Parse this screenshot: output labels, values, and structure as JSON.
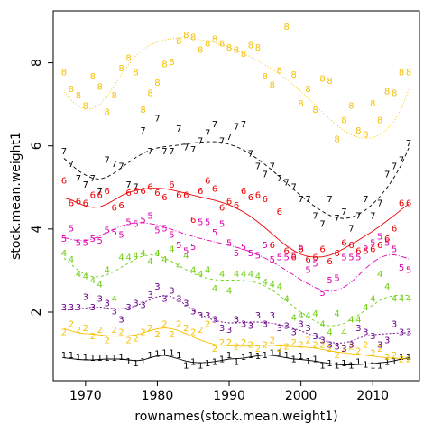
{
  "chart_data": {
    "type": "scatter",
    "xlabel": "rownames(stock.mean.weight1)",
    "ylabel": "stock.mean.weight1",
    "xlim": [
      1965.5,
      2016.5
    ],
    "ylim": [
      0.35,
      9.25
    ],
    "xticks": [
      1970,
      1980,
      1990,
      2000,
      2010
    ],
    "yticks": [
      2,
      4,
      6,
      8
    ],
    "x": [
      1967,
      1968,
      1969,
      1970,
      1971,
      1972,
      1973,
      1974,
      1975,
      1976,
      1977,
      1978,
      1979,
      1980,
      1981,
      1982,
      1983,
      1984,
      1985,
      1986,
      1987,
      1988,
      1989,
      1990,
      1991,
      1992,
      1993,
      1994,
      1995,
      1996,
      1997,
      1998,
      1999,
      2000,
      2001,
      2002,
      2003,
      2004,
      2005,
      2006,
      2007,
      2008,
      2009,
      2010,
      2011,
      2012,
      2013,
      2014,
      2015
    ],
    "series": [
      {
        "name": "1",
        "color": "#000000",
        "dash": "",
        "values": [
          0.95,
          0.95,
          0.9,
          0.9,
          0.88,
          0.88,
          0.88,
          0.88,
          0.9,
          0.8,
          0.75,
          0.8,
          0.95,
          0.98,
          1.0,
          1.0,
          0.95,
          0.7,
          0.78,
          0.7,
          0.75,
          0.78,
          0.85,
          0.95,
          0.78,
          0.9,
          0.95,
          0.93,
          0.95,
          1.0,
          1.0,
          0.95,
          0.85,
          0.92,
          0.8,
          0.85,
          0.7,
          0.75,
          0.7,
          0.75,
          0.7,
          0.78,
          0.72,
          0.7,
          0.7,
          0.78,
          0.8,
          0.9,
          0.9
        ],
        "smooth": [
          0.9,
          0.88,
          0.86,
          0.85,
          0.85,
          0.86,
          0.87,
          0.87,
          0.87,
          0.85,
          0.83,
          0.85,
          0.9,
          0.95,
          0.96,
          0.92,
          0.87,
          0.82,
          0.79,
          0.78,
          0.79,
          0.81,
          0.84,
          0.87,
          0.88,
          0.89,
          0.92,
          0.95,
          0.97,
          0.96,
          0.93,
          0.9,
          0.87,
          0.86,
          0.84,
          0.82,
          0.79,
          0.76,
          0.74,
          0.73,
          0.73,
          0.74,
          0.75,
          0.76,
          0.78,
          0.8,
          0.83,
          0.87,
          0.9
        ]
      },
      {
        "name": "2",
        "color": "#f5c000",
        "dash": "",
        "values": [
          1.5,
          1.7,
          1.55,
          1.6,
          1.4,
          1.55,
          1.3,
          1.55,
          1.5,
          1.3,
          1.35,
          1.5,
          1.6,
          1.45,
          1.7,
          1.45,
          1.7,
          1.6,
          1.5,
          1.55,
          1.7,
          1.1,
          1.25,
          1.25,
          1.15,
          1.25,
          1.2,
          1.1,
          1.2,
          1.3,
          1.1,
          1.15,
          1.25,
          1.2,
          1.3,
          1.2,
          1.2,
          1.1,
          0.95,
          1.1,
          1.15,
          1.05,
          1.2,
          1.0,
          1.1,
          0.9,
          0.95,
          0.85,
          0.85
        ],
        "smooth": [
          1.6,
          1.55,
          1.5,
          1.48,
          1.47,
          1.45,
          1.43,
          1.42,
          1.42,
          1.43,
          1.45,
          1.5,
          1.55,
          1.6,
          1.62,
          1.6,
          1.55,
          1.48,
          1.4,
          1.33,
          1.27,
          1.22,
          1.2,
          1.19,
          1.18,
          1.18,
          1.19,
          1.2,
          1.2,
          1.2,
          1.19,
          1.18,
          1.17,
          1.16,
          1.15,
          1.13,
          1.1,
          1.07,
          1.04,
          1.02,
          1.0,
          0.98,
          0.96,
          0.94,
          0.92,
          0.9,
          0.89,
          0.88,
          0.87
        ]
      },
      {
        "name": "3",
        "color": "#6a008a",
        "dash": "2,2",
        "values": [
          2.1,
          2.1,
          2.1,
          2.35,
          2.1,
          2.3,
          2.2,
          2.0,
          1.8,
          2.1,
          2.2,
          2.15,
          2.4,
          2.6,
          2.3,
          2.5,
          2.3,
          2.2,
          2.0,
          1.9,
          1.9,
          1.8,
          1.6,
          1.55,
          1.8,
          1.7,
          1.65,
          1.9,
          1.7,
          1.9,
          1.6,
          1.65,
          1.5,
          1.7,
          1.6,
          1.4,
          1.3,
          1.2,
          1.15,
          1.1,
          1.2,
          1.6,
          1.5,
          1.4,
          1.2,
          1.3,
          1.7,
          1.5,
          1.5
        ],
        "smooth": [
          2.05,
          2.05,
          2.07,
          2.1,
          2.12,
          2.12,
          2.1,
          2.08,
          2.08,
          2.1,
          2.15,
          2.22,
          2.3,
          2.37,
          2.4,
          2.37,
          2.28,
          2.17,
          2.05,
          1.95,
          1.86,
          1.8,
          1.76,
          1.74,
          1.74,
          1.75,
          1.76,
          1.76,
          1.75,
          1.73,
          1.7,
          1.65,
          1.6,
          1.55,
          1.48,
          1.41,
          1.34,
          1.28,
          1.25,
          1.26,
          1.3,
          1.37,
          1.42,
          1.45,
          1.47,
          1.48,
          1.49,
          1.5,
          1.5
        ]
      },
      {
        "name": "4",
        "color": "#6ecf0f",
        "dash": "3,3",
        "values": [
          3.4,
          3.25,
          2.9,
          2.85,
          2.75,
          2.65,
          3.0,
          2.3,
          3.3,
          3.3,
          3.35,
          3.4,
          3.2,
          3.4,
          3.25,
          3.5,
          3.1,
          3.35,
          3.0,
          2.9,
          3.0,
          2.55,
          2.9,
          2.5,
          2.9,
          2.9,
          2.9,
          2.85,
          2.7,
          2.65,
          2.6,
          2.3,
          1.85,
          1.9,
          1.9,
          1.95,
          1.7,
          1.5,
          1.95,
          1.5,
          1.8,
          1.8,
          2.1,
          2.3,
          2.9,
          2.6,
          2.3,
          2.3,
          2.3
        ],
        "smooth": [
          3.3,
          3.15,
          3.0,
          2.9,
          2.85,
          2.85,
          2.9,
          2.98,
          3.08,
          3.18,
          3.28,
          3.35,
          3.38,
          3.36,
          3.3,
          3.22,
          3.12,
          3.02,
          2.93,
          2.86,
          2.81,
          2.78,
          2.77,
          2.77,
          2.77,
          2.76,
          2.74,
          2.7,
          2.63,
          2.53,
          2.4,
          2.27,
          2.13,
          2.0,
          1.88,
          1.78,
          1.7,
          1.67,
          1.68,
          1.73,
          1.82,
          1.93,
          2.05,
          2.17,
          2.28,
          2.36,
          2.4,
          2.41,
          2.4
        ]
      },
      {
        "name": "5",
        "color": "#e000b0",
        "dash": "6,2,1,2",
        "values": [
          3.75,
          4.0,
          3.65,
          3.65,
          3.75,
          3.7,
          3.95,
          3.9,
          3.85,
          4.15,
          4.1,
          4.2,
          4.3,
          3.95,
          4.0,
          3.85,
          3.6,
          3.45,
          3.55,
          4.15,
          4.15,
          3.9,
          4.1,
          3.65,
          3.4,
          3.55,
          3.4,
          3.35,
          3.6,
          3.25,
          3.3,
          3.3,
          3.35,
          3.55,
          3.0,
          3.15,
          2.45,
          2.75,
          2.8,
          3.3,
          3.3,
          3.3,
          3.55,
          3.65,
          3.8,
          3.65,
          3.5,
          3.05,
          3.0
        ],
        "smooth": [
          3.8,
          3.75,
          3.72,
          3.72,
          3.76,
          3.83,
          3.92,
          4.0,
          4.07,
          4.12,
          4.15,
          4.15,
          4.13,
          4.1,
          4.05,
          3.99,
          3.93,
          3.87,
          3.82,
          3.77,
          3.73,
          3.69,
          3.65,
          3.61,
          3.56,
          3.51,
          3.45,
          3.38,
          3.3,
          3.21,
          3.11,
          3.0,
          2.89,
          2.78,
          2.68,
          2.59,
          2.53,
          2.5,
          2.52,
          2.6,
          2.72,
          2.88,
          3.05,
          3.2,
          3.31,
          3.37,
          3.38,
          3.34,
          3.28
        ]
      },
      {
        "name": "6",
        "color": "#ee0000",
        "dash": "",
        "values": [
          5.15,
          4.6,
          4.65,
          4.6,
          4.8,
          4.8,
          4.9,
          4.5,
          4.55,
          4.85,
          4.9,
          4.9,
          5.0,
          4.85,
          4.75,
          5.05,
          4.8,
          4.8,
          4.2,
          4.9,
          5.15,
          4.95,
          4.5,
          4.65,
          4.55,
          4.9,
          4.75,
          4.8,
          4.7,
          3.6,
          4.4,
          3.45,
          3.3,
          3.5,
          3.25,
          3.3,
          3.5,
          3.2,
          3.4,
          3.65,
          3.6,
          3.45,
          3.45,
          3.5,
          3.6,
          3.75,
          4.0,
          4.6,
          4.6
        ],
        "smooth": [
          4.75,
          4.7,
          4.62,
          4.55,
          4.52,
          4.53,
          4.6,
          4.7,
          4.8,
          4.88,
          4.93,
          4.96,
          4.98,
          4.98,
          4.97,
          4.94,
          4.9,
          4.86,
          4.81,
          4.77,
          4.73,
          4.69,
          4.64,
          4.58,
          4.5,
          4.41,
          4.3,
          4.17,
          4.03,
          3.88,
          3.73,
          3.59,
          3.48,
          3.39,
          3.34,
          3.32,
          3.33,
          3.37,
          3.44,
          3.53,
          3.63,
          3.73,
          3.84,
          3.95,
          4.07,
          4.2,
          4.33,
          4.47,
          4.6
        ]
      },
      {
        "name": "7",
        "color": "#000000",
        "dash": "4,3",
        "values": [
          5.85,
          5.55,
          5.2,
          5.05,
          5.2,
          4.9,
          5.65,
          5.55,
          5.5,
          5.05,
          5.0,
          6.35,
          5.85,
          6.65,
          5.85,
          5.85,
          6.4,
          5.95,
          5.9,
          6.1,
          6.3,
          6.5,
          6.1,
          6.2,
          6.45,
          6.5,
          5.8,
          5.5,
          5.3,
          5.5,
          5.2,
          5.1,
          5.0,
          4.7,
          4.7,
          4.3,
          4.1,
          4.7,
          4.25,
          4.4,
          4.0,
          4.3,
          4.7,
          4.3,
          4.6,
          5.3,
          5.5,
          5.65,
          6.05
        ],
        "smooth": [
          5.7,
          5.55,
          5.4,
          5.3,
          5.22,
          5.2,
          5.25,
          5.35,
          5.48,
          5.6,
          5.72,
          5.82,
          5.9,
          5.95,
          5.98,
          6.0,
          6.02,
          6.05,
          6.07,
          6.09,
          6.1,
          6.1,
          6.08,
          6.04,
          5.98,
          5.9,
          5.8,
          5.68,
          5.55,
          5.41,
          5.26,
          5.1,
          4.95,
          4.8,
          4.66,
          4.53,
          4.42,
          4.33,
          4.27,
          4.25,
          4.28,
          4.35,
          4.46,
          4.6,
          4.78,
          5.0,
          5.25,
          5.55,
          5.95
        ]
      },
      {
        "name": "8",
        "color": "#f5c000",
        "dash": "1,2",
        "values": [
          7.75,
          7.35,
          7.2,
          6.95,
          7.65,
          7.4,
          6.8,
          7.2,
          7.85,
          8.1,
          7.75,
          6.85,
          7.25,
          7.5,
          7.95,
          8.0,
          8.5,
          8.65,
          8.6,
          8.3,
          8.45,
          8.55,
          8.45,
          8.35,
          8.3,
          8.2,
          8.4,
          8.35,
          7.65,
          7.45,
          7.8,
          8.85,
          7.7,
          7.0,
          7.35,
          6.85,
          7.6,
          7.55,
          6.15,
          6.6,
          6.95,
          6.35,
          6.25,
          7.0,
          6.6,
          7.3,
          7.25,
          7.75,
          7.75
        ],
        "smooth": [
          7.3,
          7.1,
          6.96,
          6.88,
          6.9,
          7.0,
          7.2,
          7.45,
          7.72,
          7.96,
          8.17,
          8.32,
          8.43,
          8.5,
          8.55,
          8.58,
          8.6,
          8.6,
          8.58,
          8.55,
          8.52,
          8.48,
          8.43,
          8.37,
          8.3,
          8.22,
          8.14,
          8.05,
          7.95,
          7.85,
          7.73,
          7.6,
          7.46,
          7.31,
          7.15,
          6.98,
          6.81,
          6.65,
          6.5,
          6.37,
          6.27,
          6.2,
          6.18,
          6.2,
          6.27,
          6.4,
          6.6,
          6.9,
          7.35
        ]
      }
    ]
  }
}
